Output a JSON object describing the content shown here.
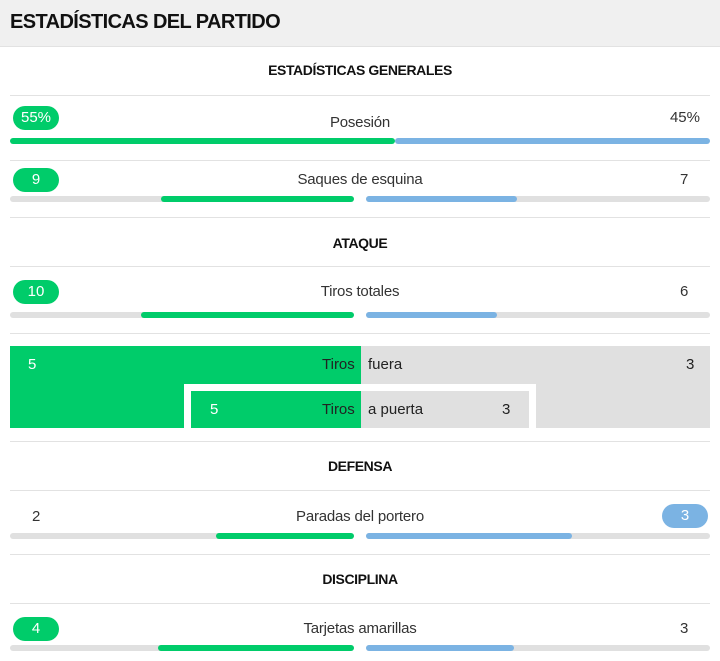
{
  "header": {
    "title": "ESTADÍSTICAS DEL PARTIDO"
  },
  "colors": {
    "home": "#00cc6a",
    "away": "#7bb3e3",
    "track": "#e0e0e0"
  },
  "sections": {
    "general": "ESTADÍSTICAS GENERALES",
    "attack": "ATAQUE",
    "defense": "DEFENSA",
    "discipline": "DISCIPLINA"
  },
  "stats": {
    "possession": {
      "label": "Posesión",
      "home": "55%",
      "away": "45%",
      "home_share": 0.55,
      "away_share": 0.45,
      "leader": "home"
    },
    "corners": {
      "label": "Saques de esquina",
      "home": "9",
      "away": "7",
      "home_share": 0.56,
      "away_share": 0.44,
      "leader": "home"
    },
    "total_shots": {
      "label": "Tiros totales",
      "home": "10",
      "away": "6",
      "home_share": 0.62,
      "away_share": 0.38,
      "leader": "home"
    },
    "saves": {
      "label": "Paradas del portero",
      "home": "2",
      "away": "3",
      "home_share": 0.4,
      "away_share": 0.6,
      "leader": "away"
    },
    "yellow_cards": {
      "label": "Tarjetas amarillas",
      "home": "4",
      "away": "3",
      "home_share": 0.57,
      "away_share": 0.43,
      "leader": "home"
    }
  },
  "shots_breakdown": {
    "shots_word": "Tiros",
    "off_target": {
      "label": "fuera",
      "home": "5",
      "away": "3"
    },
    "on_target": {
      "label": "a puerta",
      "home": "5",
      "away": "3"
    }
  }
}
